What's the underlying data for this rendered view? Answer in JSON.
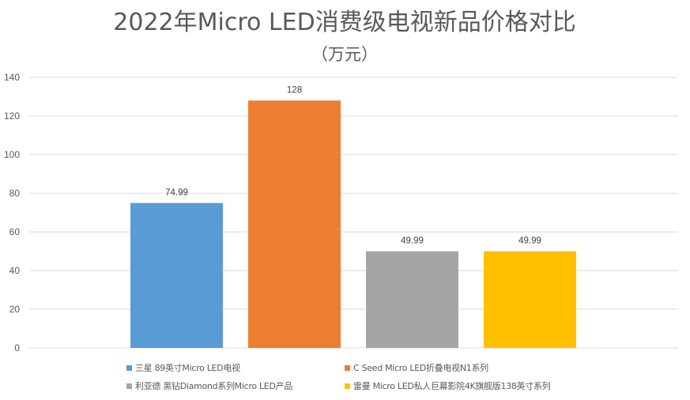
{
  "chart_data": {
    "type": "bar",
    "title": "2022年Micro LED消费级电视新品价格对比",
    "subtitle": "（万元）",
    "xlabel": "",
    "ylabel": "",
    "ylim": [
      0,
      140
    ],
    "yticks": [
      0,
      20,
      40,
      60,
      80,
      100,
      120,
      140
    ],
    "grid": true,
    "legend_position": "bottom",
    "categories": [
      ""
    ],
    "series": [
      {
        "name": "三星 89英寸Micro LED电视",
        "values": [
          74.99
        ],
        "label": "74.99",
        "color": "#5B9BD5"
      },
      {
        "name": "C Seed Micro LED折叠电视N1系列",
        "values": [
          128
        ],
        "label": "128",
        "color": "#ED7D31"
      },
      {
        "name": "利亚德 黑钻Diamond系列Micro LED产品",
        "values": [
          49.99
        ],
        "label": "49.99",
        "color": "#A5A5A5"
      },
      {
        "name": "雷曼 Micro LED私人巨幕影院4K旗舰版138英寸系列",
        "values": [
          49.99
        ],
        "label": "49.99",
        "color": "#FFC000"
      }
    ]
  }
}
